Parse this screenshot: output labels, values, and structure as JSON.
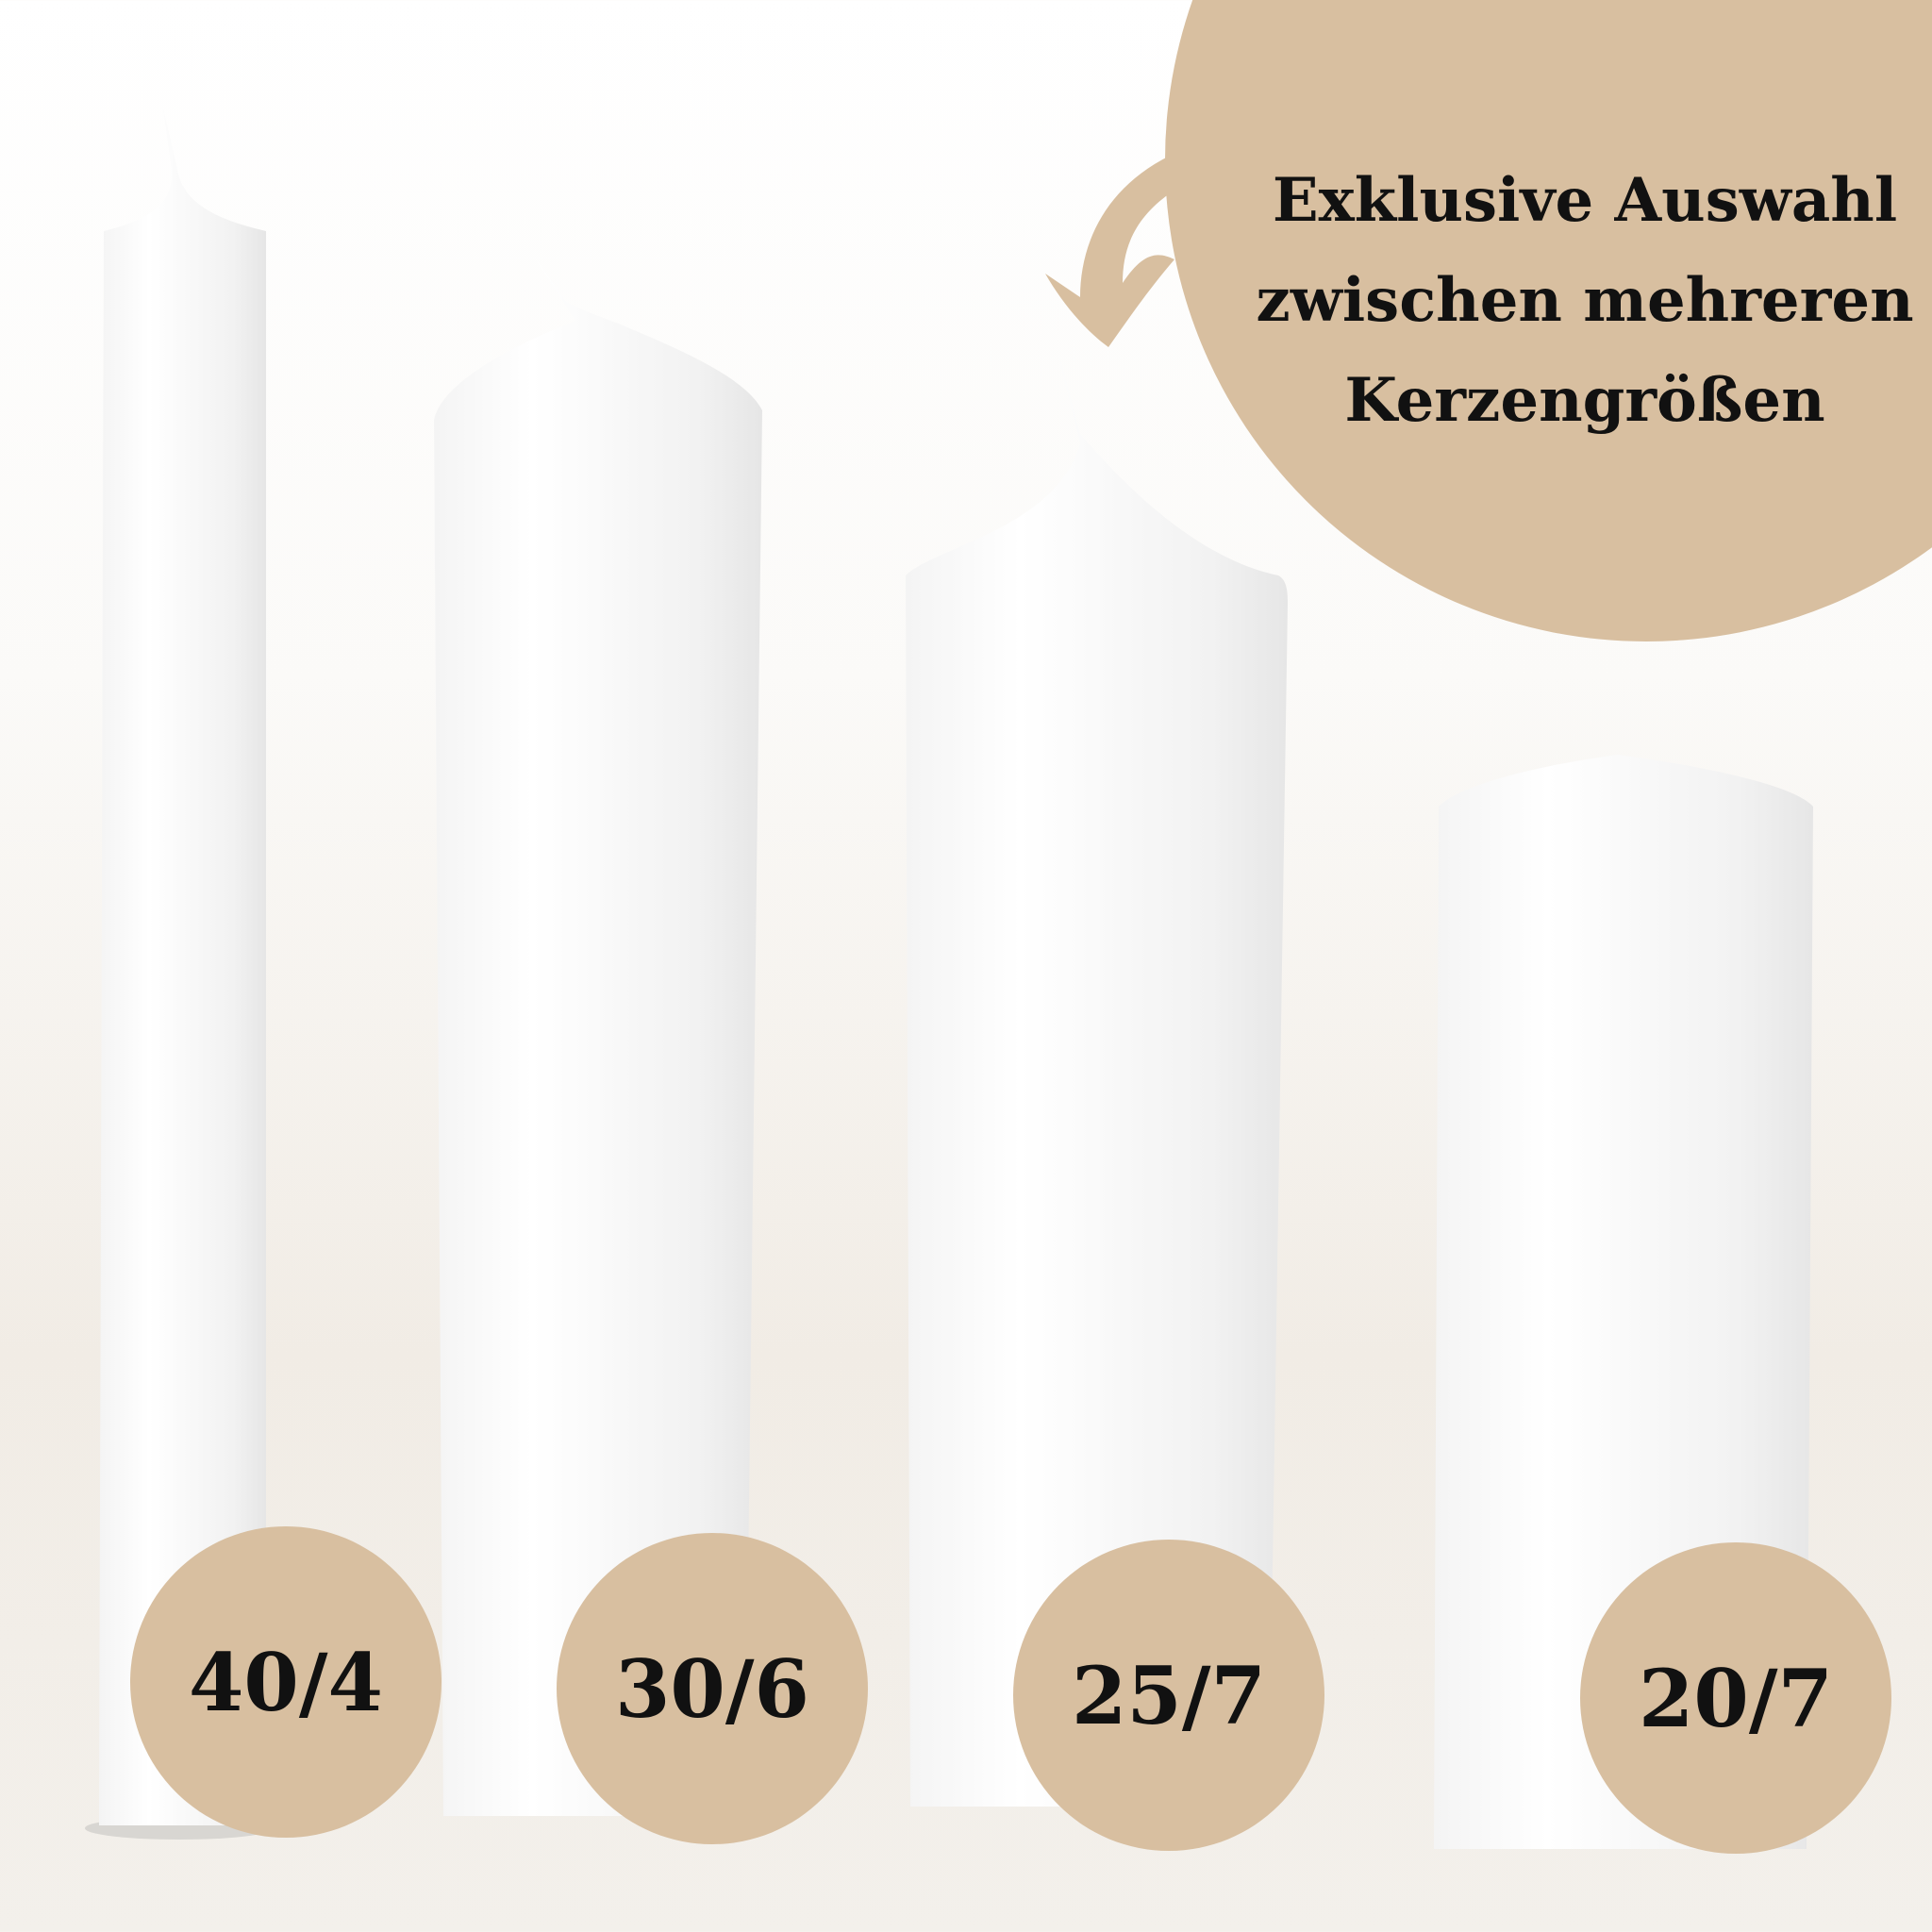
{
  "headline": {
    "lines": [
      "Exklusive Auswahl",
      "zwischen mehreren",
      "Kerzengrößen"
    ]
  },
  "sizes": [
    "40/4",
    "30/6",
    "25/7",
    "20/7"
  ],
  "colors": {
    "accent": "#d8bfa0",
    "text": "#111111",
    "candle": "#ffffff"
  },
  "icons": {
    "arrow": "curved-arrow-icon"
  }
}
